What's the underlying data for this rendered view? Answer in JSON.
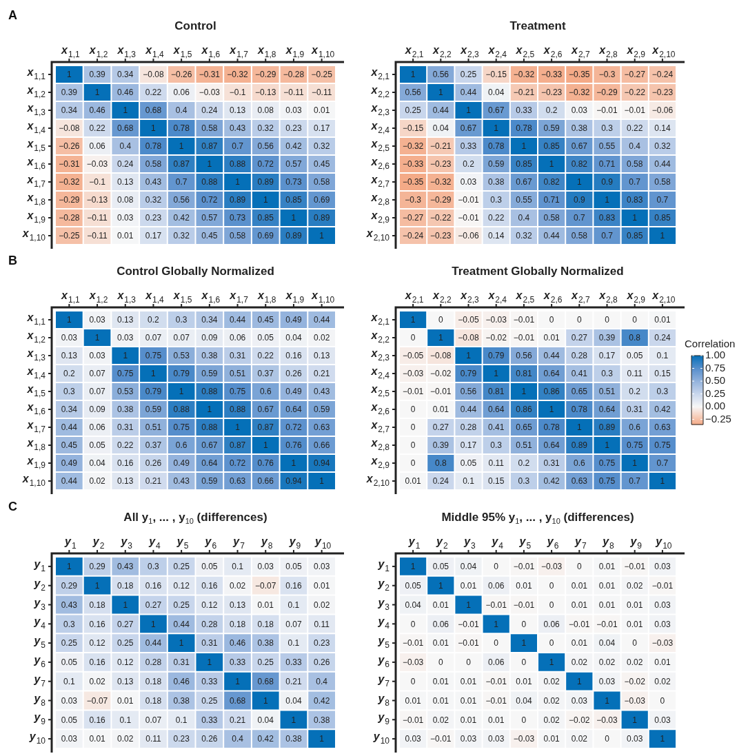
{
  "chart_data": [
    {
      "type": "heatmap",
      "title": "Control",
      "annotations": [
        "A"
      ],
      "data_labels": true,
      "categories": [
        "x$_{1,1}$",
        "x$_{1,2}$",
        "x$_{1,3}$",
        "x$_{1,4}$",
        "x$_{1,5}$",
        "x$_{1,6}$",
        "x$_{1,7}$",
        "x$_{1,8}$",
        "x$_{1,9}$",
        "x$_{1,10}$"
      ],
      "y_categories": [
        "x$_{1,1}$",
        "x$_{1,2}$",
        "x$_{1,3}$",
        "x$_{1,4}$",
        "x$_{1,5}$",
        "x$_{1,6}$",
        "x$_{1,7}$",
        "x$_{1,8}$",
        "x$_{1,9}$",
        "x$_{1,10}$"
      ],
      "cells": [
        [
          1,
          0.39,
          0.34,
          -0.08,
          -0.26,
          -0.31,
          -0.32,
          -0.29,
          -0.28,
          -0.25
        ],
        [
          0.39,
          1,
          0.46,
          0.22,
          0.06,
          -0.03,
          -0.1,
          -0.13,
          -0.11,
          -0.11
        ],
        [
          0.34,
          0.46,
          1,
          0.68,
          0.4,
          0.24,
          0.13,
          0.08,
          0.03,
          0.01
        ],
        [
          -0.08,
          0.22,
          0.68,
          1,
          0.78,
          0.58,
          0.43,
          0.32,
          0.23,
          0.17
        ],
        [
          -0.26,
          0.06,
          0.4,
          0.78,
          1,
          0.87,
          0.7,
          0.56,
          0.42,
          0.32
        ],
        [
          -0.31,
          -0.03,
          0.24,
          0.58,
          0.87,
          1,
          0.88,
          0.72,
          0.57,
          0.45
        ],
        [
          -0.32,
          -0.1,
          0.13,
          0.43,
          0.7,
          0.88,
          1,
          0.89,
          0.73,
          0.58
        ],
        [
          -0.29,
          -0.13,
          0.08,
          0.32,
          0.56,
          0.72,
          0.89,
          1,
          0.85,
          0.69
        ],
        [
          -0.28,
          -0.11,
          0.03,
          0.23,
          0.42,
          0.57,
          0.73,
          0.85,
          1,
          0.89
        ],
        [
          -0.25,
          -0.11,
          0.01,
          0.17,
          0.32,
          0.45,
          0.58,
          0.69,
          0.89,
          1
        ]
      ]
    },
    {
      "type": "heatmap",
      "title": "Treatment",
      "data_labels": true,
      "categories": [
        "x$_{2,1}$",
        "x$_{2,2}$",
        "x$_{2,3}$",
        "x$_{2,4}$",
        "x$_{2,5}$",
        "x$_{2,6}$",
        "x$_{2,7}$",
        "x$_{2,8}$",
        "x$_{2,9}$",
        "x$_{2,10}$"
      ],
      "y_categories": [
        "x$_{2,1}$",
        "x$_{2,2}$",
        "x$_{2,3}$",
        "x$_{2,4}$",
        "x$_{2,5}$",
        "x$_{2,6}$",
        "x$_{2,7}$",
        "x$_{2,8}$",
        "x$_{2,9}$",
        "x$_{2,10}$"
      ],
      "cells": [
        [
          1,
          0.56,
          0.25,
          -0.15,
          -0.32,
          -0.33,
          -0.35,
          -0.3,
          -0.27,
          -0.24
        ],
        [
          0.56,
          1,
          0.44,
          0.04,
          -0.21,
          -0.23,
          -0.32,
          -0.29,
          -0.22,
          -0.23
        ],
        [
          0.25,
          0.44,
          1,
          0.67,
          0.33,
          0.2,
          0.03,
          -0.01,
          -0.01,
          -0.06
        ],
        [
          -0.15,
          0.04,
          0.67,
          1,
          0.78,
          0.59,
          0.38,
          0.3,
          0.22,
          0.14
        ],
        [
          -0.32,
          -0.21,
          0.33,
          0.78,
          1,
          0.85,
          0.67,
          0.55,
          0.4,
          0.32
        ],
        [
          -0.33,
          -0.23,
          0.2,
          0.59,
          0.85,
          1,
          0.82,
          0.71,
          0.58,
          0.44
        ],
        [
          -0.35,
          -0.32,
          0.03,
          0.38,
          0.67,
          0.82,
          1,
          0.9,
          0.7,
          0.58
        ],
        [
          -0.3,
          -0.29,
          -0.01,
          0.3,
          0.55,
          0.71,
          0.9,
          1,
          0.83,
          0.7
        ],
        [
          -0.27,
          -0.22,
          -0.01,
          0.22,
          0.4,
          0.58,
          0.7,
          0.83,
          1,
          0.85
        ],
        [
          -0.24,
          -0.23,
          -0.06,
          0.14,
          0.32,
          0.44,
          0.58,
          0.7,
          0.85,
          1
        ]
      ]
    },
    {
      "type": "heatmap",
      "title": "Control Globally Normalized",
      "annotations": [
        "B"
      ],
      "data_labels": true,
      "categories": [
        "x$_{1,1}$",
        "x$_{1,2}$",
        "x$_{1,3}$",
        "x$_{1,4}$",
        "x$_{1,5}$",
        "x$_{1,6}$",
        "x$_{1,7}$",
        "x$_{1,8}$",
        "x$_{1,9}$",
        "x$_{1,10}$"
      ],
      "y_categories": [
        "x$_{1,1}$",
        "x$_{1,2}$",
        "x$_{1,3}$",
        "x$_{1,4}$",
        "x$_{1,5}$",
        "x$_{1,6}$",
        "x$_{1,7}$",
        "x$_{1,8}$",
        "x$_{1,9}$",
        "x$_{1,10}$"
      ],
      "cells": [
        [
          1,
          0.03,
          0.13,
          0.2,
          0.3,
          0.34,
          0.44,
          0.45,
          0.49,
          0.44
        ],
        [
          0.03,
          1,
          0.03,
          0.07,
          0.07,
          0.09,
          0.06,
          0.05,
          0.04,
          0.02
        ],
        [
          0.13,
          0.03,
          1,
          0.75,
          0.53,
          0.38,
          0.31,
          0.22,
          0.16,
          0.13
        ],
        [
          0.2,
          0.07,
          0.75,
          1,
          0.79,
          0.59,
          0.51,
          0.37,
          0.26,
          0.21
        ],
        [
          0.3,
          0.07,
          0.53,
          0.79,
          1,
          0.88,
          0.75,
          0.6,
          0.49,
          0.43
        ],
        [
          0.34,
          0.09,
          0.38,
          0.59,
          0.88,
          1,
          0.88,
          0.67,
          0.64,
          0.59
        ],
        [
          0.44,
          0.06,
          0.31,
          0.51,
          0.75,
          0.88,
          1,
          0.87,
          0.72,
          0.63
        ],
        [
          0.45,
          0.05,
          0.22,
          0.37,
          0.6,
          0.67,
          0.87,
          1,
          0.76,
          0.66
        ],
        [
          0.49,
          0.04,
          0.16,
          0.26,
          0.49,
          0.64,
          0.72,
          0.76,
          1,
          0.94
        ],
        [
          0.44,
          0.02,
          0.13,
          0.21,
          0.43,
          0.59,
          0.63,
          0.66,
          0.94,
          1
        ]
      ]
    },
    {
      "type": "heatmap",
      "title": "Treatment Globally Normalized",
      "data_labels": true,
      "clabel": "Correlation",
      "clim": [
        -0.35,
        1
      ],
      "cticks": [
        {
          "value": 1,
          "label": "1.00"
        },
        {
          "value": 0.75,
          "label": "0.75"
        },
        {
          "value": 0.5,
          "label": "0.50"
        },
        {
          "value": 0.25,
          "label": "0.25"
        },
        {
          "value": 0,
          "label": "0.00"
        },
        {
          "value": -0.25,
          "label": "−0.25"
        }
      ],
      "categories": [
        "x$_{2,1}$",
        "x$_{2,2}$",
        "x$_{2,3}$",
        "x$_{2,4}$",
        "x$_{2,5}$",
        "x$_{2,6}$",
        "x$_{2,7}$",
        "x$_{2,8}$",
        "x$_{2,9}$",
        "x$_{2,10}$"
      ],
      "y_categories": [
        "x$_{2,1}$",
        "x$_{2,2}$",
        "x$_{2,3}$",
        "x$_{2,4}$",
        "x$_{2,5}$",
        "x$_{2,6}$",
        "x$_{2,7}$",
        "x$_{2,8}$",
        "x$_{2,9}$",
        "x$_{2,10}$"
      ],
      "cells": [
        [
          1,
          0,
          -0.05,
          -0.03,
          -0.01,
          0,
          0,
          0,
          0,
          0.01
        ],
        [
          0,
          1,
          -0.08,
          -0.02,
          -0.01,
          0.01,
          0.27,
          0.39,
          0.8,
          0.24
        ],
        [
          -0.05,
          -0.08,
          1,
          0.79,
          0.56,
          0.44,
          0.28,
          0.17,
          0.05,
          0.1
        ],
        [
          -0.03,
          -0.02,
          0.79,
          1,
          0.81,
          0.64,
          0.41,
          0.3,
          0.11,
          0.15
        ],
        [
          -0.01,
          -0.01,
          0.56,
          0.81,
          1,
          0.86,
          0.65,
          0.51,
          0.2,
          0.3
        ],
        [
          0,
          0.01,
          0.44,
          0.64,
          0.86,
          1,
          0.78,
          0.64,
          0.31,
          0.42
        ],
        [
          0,
          0.27,
          0.28,
          0.41,
          0.65,
          0.78,
          1,
          0.89,
          0.6,
          0.63
        ],
        [
          0,
          0.39,
          0.17,
          0.3,
          0.51,
          0.64,
          0.89,
          1,
          0.75,
          0.75
        ],
        [
          0,
          0.8,
          0.05,
          0.11,
          0.2,
          0.31,
          0.6,
          0.75,
          1,
          0.7
        ],
        [
          0.01,
          0.24,
          0.1,
          0.15,
          0.3,
          0.42,
          0.63,
          0.75,
          0.7,
          1
        ]
      ]
    },
    {
      "type": "heatmap",
      "title": "All y$_{1}$, ... , y$_{10}$ (differences)",
      "annotations": [
        "C"
      ],
      "data_labels": true,
      "categories": [
        "y$_{1}$",
        "y$_{2}$",
        "y$_{3}$",
        "y$_{4}$",
        "y$_{5}$",
        "y$_{6}$",
        "y$_{7}$",
        "y$_{8}$",
        "y$_{9}$",
        "y$_{10}$"
      ],
      "y_categories": [
        "y$_{1}$",
        "y$_{2}$",
        "y$_{3}$",
        "y$_{4}$",
        "y$_{5}$",
        "y$_{6}$",
        "y$_{7}$",
        "y$_{8}$",
        "y$_{9}$",
        "y$_{10}$"
      ],
      "cells": [
        [
          1,
          0.29,
          0.43,
          0.3,
          0.25,
          0.05,
          0.1,
          0.03,
          0.05,
          0.03
        ],
        [
          0.29,
          1,
          0.18,
          0.16,
          0.12,
          0.16,
          0.02,
          -0.07,
          0.16,
          0.01
        ],
        [
          0.43,
          0.18,
          1,
          0.27,
          0.25,
          0.12,
          0.13,
          0.01,
          0.1,
          0.02
        ],
        [
          0.3,
          0.16,
          0.27,
          1,
          0.44,
          0.28,
          0.18,
          0.18,
          0.07,
          0.11
        ],
        [
          0.25,
          0.12,
          0.25,
          0.44,
          1,
          0.31,
          0.46,
          0.38,
          0.1,
          0.23
        ],
        [
          0.05,
          0.16,
          0.12,
          0.28,
          0.31,
          1,
          0.33,
          0.25,
          0.33,
          0.26
        ],
        [
          0.1,
          0.02,
          0.13,
          0.18,
          0.46,
          0.33,
          1,
          0.68,
          0.21,
          0.4
        ],
        [
          0.03,
          -0.07,
          0.01,
          0.18,
          0.38,
          0.25,
          0.68,
          1,
          0.04,
          0.42
        ],
        [
          0.05,
          0.16,
          0.1,
          0.07,
          0.1,
          0.33,
          0.21,
          0.04,
          1,
          0.38
        ],
        [
          0.03,
          0.01,
          0.02,
          0.11,
          0.23,
          0.26,
          0.4,
          0.42,
          0.38,
          1
        ]
      ]
    },
    {
      "type": "heatmap",
      "title": "Middle 95% y$_{1}$, ... , y$_{10}$ (differences)",
      "data_labels": true,
      "categories": [
        "y$_{1}$",
        "y$_{2}$",
        "y$_{3}$",
        "y$_{4}$",
        "y$_{5}$",
        "y$_{6}$",
        "y$_{7}$",
        "y$_{8}$",
        "y$_{9}$",
        "y$_{10}$"
      ],
      "y_categories": [
        "y$_{1}$",
        "y$_{2}$",
        "y$_{3}$",
        "y$_{4}$",
        "y$_{5}$",
        "y$_{6}$",
        "y$_{7}$",
        "y$_{8}$",
        "y$_{9}$",
        "y$_{10}$"
      ],
      "cells": [
        [
          1,
          0.05,
          0.04,
          0,
          -0.01,
          -0.03,
          0,
          0.01,
          -0.01,
          0.03
        ],
        [
          0.05,
          1,
          0.01,
          0.06,
          0.01,
          0,
          0.01,
          0.01,
          0.02,
          -0.01
        ],
        [
          0.04,
          0.01,
          1,
          -0.01,
          -0.01,
          0,
          0.01,
          0.01,
          0.01,
          0.03
        ],
        [
          0,
          0.06,
          -0.01,
          1,
          0,
          0.06,
          -0.01,
          -0.01,
          0.01,
          0.03
        ],
        [
          -0.01,
          0.01,
          -0.01,
          0,
          1,
          0,
          0.01,
          0.04,
          0,
          -0.03
        ],
        [
          -0.03,
          0,
          0,
          0.06,
          0,
          1,
          0.02,
          0.02,
          0.02,
          0.01
        ],
        [
          0,
          0.01,
          0.01,
          -0.01,
          0.01,
          0.02,
          1,
          0.03,
          -0.02,
          0.02
        ],
        [
          0.01,
          0.01,
          0.01,
          -0.01,
          0.04,
          0.02,
          0.03,
          1,
          -0.03,
          0
        ],
        [
          -0.01,
          0.02,
          0.01,
          0.01,
          0,
          0.02,
          -0.02,
          -0.03,
          1,
          0.03
        ],
        [
          0.03,
          -0.01,
          0.03,
          0.03,
          -0.03,
          0.01,
          0.02,
          0,
          0.03,
          1
        ]
      ]
    }
  ]
}
